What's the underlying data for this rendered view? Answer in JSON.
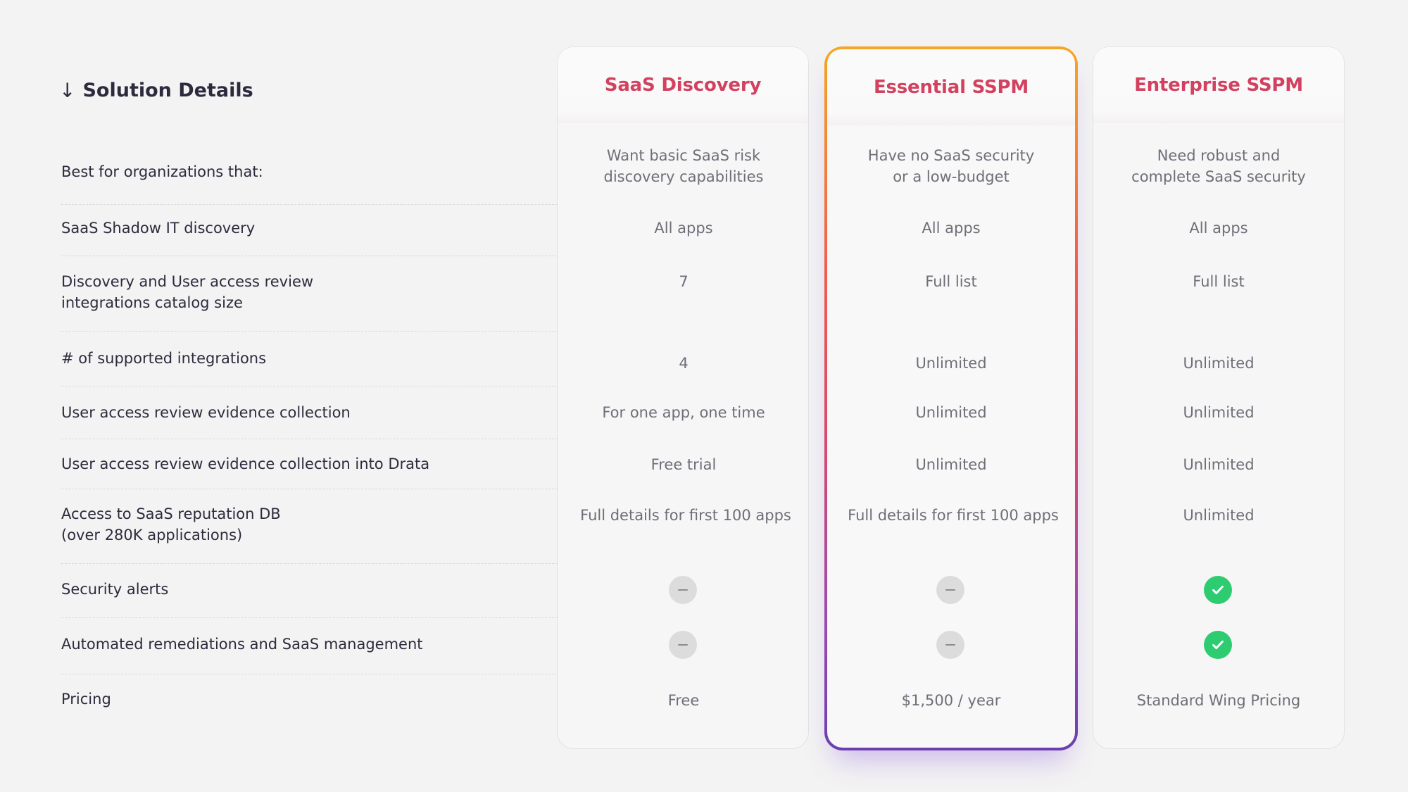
{
  "section_heading": {
    "arrow": "↓",
    "label": "Solution Details"
  },
  "plans": [
    {
      "name": "SaaS Discovery"
    },
    {
      "name": "Essential SSPM",
      "featured": true
    },
    {
      "name": "Enterprise SSPM"
    }
  ],
  "rows": [
    {
      "label": "Best for organizations that:",
      "values": [
        "Want basic SaaS risk\ndiscovery capabilities",
        "Have no SaaS security\nor a low-budget",
        "Need robust and\ncomplete SaaS security"
      ]
    },
    {
      "label": "SaaS Shadow IT discovery",
      "values": [
        "All apps",
        "All apps",
        "All apps"
      ]
    },
    {
      "label": "Discovery and User access review\nintegrations catalog size",
      "values": [
        "7",
        "Full list",
        "Full list"
      ]
    },
    {
      "label": "# of supported integrations",
      "values": [
        "4",
        "Unlimited",
        "Unlimited"
      ]
    },
    {
      "label": "User access review evidence collection",
      "values": [
        "For one app, one time",
        "Unlimited",
        "Unlimited"
      ]
    },
    {
      "label": "User access review evidence collection into Drata",
      "values": [
        "Free trial",
        "Unlimited",
        "Unlimited"
      ]
    },
    {
      "label": "Access to SaaS reputation DB\n(over 280K applications)",
      "values": [
        "Full details for first 100 apps",
        "Full details for first 100 apps",
        "Unlimited"
      ]
    },
    {
      "label": "Security alerts",
      "values": [
        "not-included",
        "not-included",
        "included"
      ]
    },
    {
      "label": "Automated remediations and SaaS management",
      "values": [
        "not-included",
        "not-included",
        "included"
      ]
    },
    {
      "label": "Pricing",
      "values": [
        "Free",
        "$1,500 / year",
        "Standard Wing Pricing"
      ]
    }
  ],
  "icons": {
    "not_included": "minus-circle-icon",
    "included": "check-circle-icon"
  },
  "colors": {
    "plan_title": "#d2415f",
    "included": "#2ecc71",
    "not_included": "#dddcdc",
    "featured_border_top": "#f5a623",
    "featured_border_bottom": "#6b3fb0"
  }
}
